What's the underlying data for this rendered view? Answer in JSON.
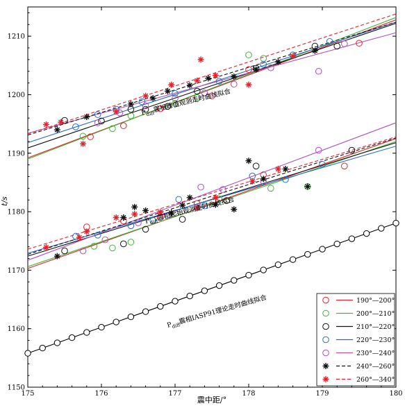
{
  "chart_data": {
    "type": "scatter",
    "xlabel": "震中距/°",
    "ylabel": "t/s",
    "xlim": [
      175,
      180
    ],
    "ylim": [
      1150,
      1215
    ],
    "xticks": [
      175,
      176,
      177,
      178,
      179,
      180
    ],
    "yticks": [
      1150,
      1160,
      1170,
      1180,
      1190,
      1200,
      1210
    ],
    "grid": false,
    "legend_position": "bottom-right",
    "annotations": [
      {
        "prefix": "P",
        "sub": "diff",
        "text": "震相峰值观测走时曲线拟合",
        "x": 176.55,
        "y": 1196.5,
        "angle": -14
      },
      {
        "prefix": "P",
        "sub": "diff",
        "text": "震相起始观测走时曲线拟合",
        "x": 176.6,
        "y": 1178.0,
        "angle": -14
      },
      {
        "prefix": "P",
        "sub": "diff",
        "text": "震相IASP91理论走时曲线拟合",
        "x": 176.9,
        "y": 1160.2,
        "angle": -16
      }
    ],
    "theory": {
      "name": "IASP91",
      "x": [
        175.0,
        175.2,
        175.4,
        175.6,
        175.8,
        176.0,
        176.2,
        176.4,
        176.6,
        176.8,
        177.0,
        177.2,
        177.4,
        177.6,
        177.8,
        178.0,
        178.2,
        178.4,
        178.6,
        178.8,
        179.0,
        179.2,
        179.4,
        179.6,
        179.8,
        180.0
      ],
      "slope": 4.45,
      "intercept_at_175": 1155.8
    },
    "series": [
      {
        "name": "190°—200°",
        "color": "#e8202a",
        "marker": "circle",
        "line_style": "solid",
        "peak_fit": [
          [
            175,
            1189.2
          ],
          [
            180,
            1212.8
          ]
        ],
        "onset_fit": [
          [
            175,
            1170.3
          ],
          [
            180,
            1192.5
          ]
        ],
        "peak_points": [
          [
            175.85,
            1192.8
          ],
          [
            176.3,
            1194.7
          ],
          [
            176.8,
            1197.6
          ],
          [
            177.5,
            1199.8
          ],
          [
            178.0,
            1204.3
          ],
          [
            179.5,
            1208.8
          ]
        ],
        "onset_points": [
          [
            175.8,
            1177.4
          ],
          [
            176.3,
            1178.4
          ],
          [
            176.8,
            1179.0
          ],
          [
            177.3,
            1181.4
          ],
          [
            178.2,
            1186.3
          ],
          [
            179.3,
            1187.8
          ]
        ]
      },
      {
        "name": "200°—210°",
        "color": "#3fb535",
        "marker": "circle",
        "line_style": "solid",
        "peak_fit": [
          [
            175,
            1189.0
          ],
          [
            180,
            1213.2
          ]
        ],
        "onset_fit": [
          [
            175,
            1170.6
          ],
          [
            180,
            1192.0
          ]
        ],
        "peak_points": [
          [
            175.75,
            1192.9
          ],
          [
            176.15,
            1194.2
          ],
          [
            176.4,
            1196.4
          ],
          [
            177.0,
            1198.5
          ],
          [
            177.3,
            1199.5
          ],
          [
            178.0,
            1206.8
          ],
          [
            178.2,
            1206.2
          ]
        ],
        "onset_points": [
          [
            175.9,
            1174.1
          ],
          [
            176.15,
            1173.8
          ],
          [
            176.4,
            1174.8
          ],
          [
            177.6,
            1182.2
          ],
          [
            178.3,
            1184.0
          ],
          [
            178.8,
            1184.3
          ]
        ]
      },
      {
        "name": "210°—220°",
        "color": "#111111",
        "marker": "circle",
        "line_style": "solid",
        "peak_fit": [
          [
            175,
            1190.9
          ],
          [
            180,
            1212.2
          ]
        ],
        "onset_fit": [
          [
            175,
            1172.4
          ],
          [
            180,
            1191.8
          ]
        ],
        "peak_points": [
          [
            175.5,
            1195.6
          ],
          [
            176.0,
            1195.5
          ],
          [
            176.4,
            1197.5
          ],
          [
            176.6,
            1197.5
          ],
          [
            176.9,
            1198.0
          ],
          [
            177.3,
            1200.6
          ],
          [
            178.1,
            1204.5
          ],
          [
            178.9,
            1208.3
          ],
          [
            179.2,
            1208.3
          ]
        ],
        "onset_points": [
          [
            175.5,
            1173.3
          ],
          [
            176.3,
            1174.5
          ],
          [
            176.6,
            1177.0
          ],
          [
            177.1,
            1178.7
          ],
          [
            177.7,
            1181.9
          ],
          [
            178.1,
            1187.8
          ],
          [
            179.4,
            1190.5
          ]
        ]
      },
      {
        "name": "220°—230°",
        "color": "#2a6cc4",
        "marker": "circle",
        "line_style": "solid",
        "peak_fit": [
          [
            175,
            1191.8
          ],
          [
            180,
            1212.4
          ]
        ],
        "onset_fit": [
          [
            175,
            1172.9
          ],
          [
            180,
            1191.2
          ]
        ],
        "peak_points": [
          [
            175.65,
            1194.5
          ],
          [
            175.95,
            1196.6
          ],
          [
            176.2,
            1197.5
          ],
          [
            176.55,
            1198.8
          ],
          [
            177.0,
            1200.2
          ],
          [
            177.6,
            1202.3
          ],
          [
            178.2,
            1205.2
          ],
          [
            178.6,
            1206.8
          ],
          [
            179.1,
            1209.1
          ]
        ],
        "onset_points": [
          [
            175.65,
            1175.8
          ],
          [
            175.95,
            1176.0
          ],
          [
            176.4,
            1177.6
          ],
          [
            176.7,
            1178.5
          ],
          [
            177.05,
            1182.1
          ],
          [
            177.4,
            1181.0
          ],
          [
            178.05,
            1186.1
          ],
          [
            178.5,
            1185.5
          ],
          [
            179.0,
            1188.1
          ]
        ]
      },
      {
        "name": "230°—240°",
        "color": "#b04ec0",
        "marker": "circle",
        "line_style": "solid",
        "peak_fit": [
          [
            175,
            1193.4
          ],
          [
            180,
            1210.6
          ]
        ],
        "onset_fit": [
          [
            175,
            1171.7
          ],
          [
            180,
            1195.2
          ]
        ],
        "peak_points": [
          [
            175.95,
            1195.2
          ],
          [
            176.25,
            1196.9
          ],
          [
            176.6,
            1198.1
          ],
          [
            177.0,
            1199.4
          ],
          [
            177.4,
            1200.3
          ],
          [
            177.8,
            1201.8
          ],
          [
            178.3,
            1204.6
          ],
          [
            178.95,
            1204.0
          ],
          [
            179.3,
            1208.7
          ]
        ],
        "onset_points": [
          [
            175.75,
            1173.3
          ],
          [
            176.05,
            1175.2
          ],
          [
            176.5,
            1178.1
          ],
          [
            176.9,
            1179.3
          ],
          [
            177.3,
            1180.7
          ],
          [
            177.35,
            1184.2
          ],
          [
            177.65,
            1183.8
          ],
          [
            178.2,
            1185.2
          ],
          [
            178.95,
            1190.5
          ]
        ]
      },
      {
        "name": "240°—260°",
        "color": "#111111",
        "marker": "star",
        "line_style": "dashed",
        "peak_fit": [
          [
            175,
            1193.1
          ],
          [
            180,
            1212.4
          ]
        ],
        "onset_fit": [
          [
            175,
            1172.7
          ],
          [
            180,
            1192.6
          ]
        ],
        "peak_points": [
          [
            175.4,
            1194.0
          ],
          [
            175.8,
            1196.2
          ],
          [
            176.4,
            1198.4
          ],
          [
            176.7,
            1199.4
          ],
          [
            176.9,
            1200.6
          ],
          [
            177.2,
            1201.6
          ],
          [
            177.45,
            1202.8
          ],
          [
            177.8,
            1203.1
          ],
          [
            178.1,
            1204.3
          ],
          [
            178.4,
            1205.6
          ],
          [
            178.9,
            1207.5
          ]
        ],
        "onset_points": [
          [
            175.4,
            1172.4
          ],
          [
            176.3,
            1179.0
          ],
          [
            176.45,
            1180.8
          ],
          [
            176.6,
            1180.2
          ],
          [
            176.95,
            1179.8
          ],
          [
            177.1,
            1181.1
          ],
          [
            177.2,
            1182.4
          ],
          [
            177.55,
            1181.2
          ],
          [
            177.8,
            1180.4
          ],
          [
            178.0,
            1188.7
          ],
          [
            178.2,
            1185.6
          ],
          [
            178.5,
            1187.3
          ],
          [
            178.8,
            1184.3
          ]
        ]
      },
      {
        "name": "260°—340°",
        "color": "#e8202a",
        "marker": "star",
        "line_style": "dashed",
        "peak_fit": [
          [
            175,
            1193.3
          ],
          [
            180,
            1213.8
          ]
        ],
        "onset_fit": [
          [
            175,
            1173.6
          ],
          [
            180,
            1192.8
          ]
        ],
        "peak_points": [
          [
            175.25,
            1194.9
          ],
          [
            175.45,
            1195.3
          ],
          [
            175.75,
            1191.6
          ],
          [
            176.2,
            1197.1
          ],
          [
            176.6,
            1199.8
          ],
          [
            176.95,
            1201.7
          ],
          [
            177.3,
            1202.4
          ],
          [
            177.35,
            1206.0
          ],
          [
            177.55,
            1203.3
          ],
          [
            178.0,
            1201.7
          ],
          [
            178.6,
            1206.6
          ]
        ],
        "onset_points": [
          [
            175.25,
            1173.9
          ],
          [
            175.7,
            1175.6
          ],
          [
            175.8,
            1176.6
          ],
          [
            176.2,
            1179.0
          ],
          [
            176.45,
            1179.6
          ],
          [
            176.8,
            1179.9
          ],
          [
            177.3,
            1180.6
          ],
          [
            177.55,
            1182.4
          ],
          [
            178.05,
            1185.2
          ],
          [
            178.4,
            1187.3
          ]
        ]
      }
    ]
  }
}
